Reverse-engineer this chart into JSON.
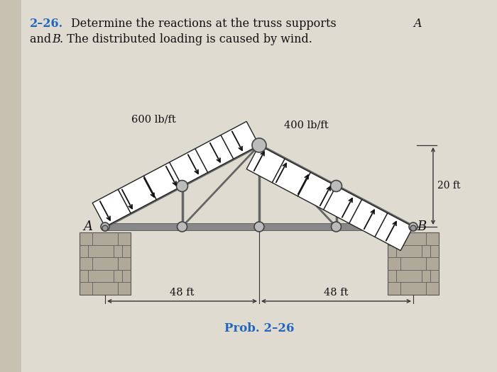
{
  "page_bg": "#c8c0b0",
  "inner_bg": "#d8d4c8",
  "text_color": "#111111",
  "title_number_color": "#2266bb",
  "prob_color": "#2266bb",
  "truss_color": "#666666",
  "truss_lw": 2.5,
  "panel_color": "#ffffff",
  "panel_edge": "#222222",
  "load_arrow_color": "#111111",
  "dim_color": "#111111",
  "joint_color": "#aaaaaa",
  "joint_edge": "#444444",
  "brick_light": "#b0a898",
  "brick_dark": "#888070",
  "label_600": "600 lb/ft",
  "label_400": "400 lb/ft",
  "label_20ft": "20 ft",
  "label_48ft_left": "48 ft",
  "label_48ft_right": "48 ft",
  "label_A": "A",
  "label_B": "B",
  "prob_label": "Prob. 2–26"
}
